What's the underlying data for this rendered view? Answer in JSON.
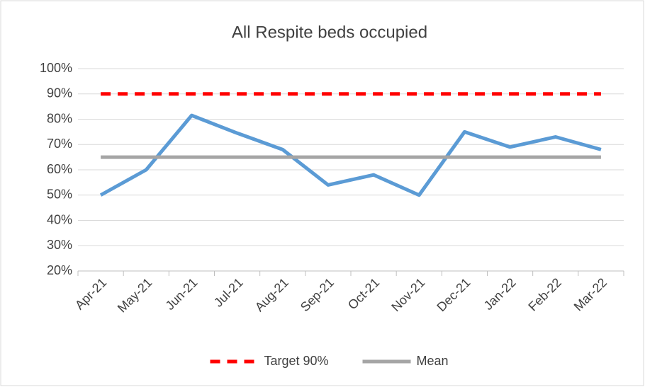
{
  "chart_data": {
    "type": "line",
    "title": "All Respite beds occupied",
    "categories": [
      "Apr-21",
      "May-21",
      "Jun-21",
      "Jul-21",
      "Aug-21",
      "Sep-21",
      "Oct-21",
      "Nov-21",
      "Dec-21",
      "Jan-22",
      "Feb-22",
      "Mar-22"
    ],
    "series": [
      {
        "color": "#5b9bd5",
        "values": [
          50,
          60,
          81.5,
          74.5,
          68,
          54,
          58,
          50,
          75,
          69,
          73,
          68
        ]
      },
      {
        "name": "Target 90%",
        "color": "#ff0000",
        "dashed": true,
        "values": [
          90,
          90,
          90,
          90,
          90,
          90,
          90,
          90,
          90,
          90,
          90,
          90
        ]
      },
      {
        "name": "Mean",
        "color": "#a5a5a5",
        "values": [
          65,
          65,
          65,
          65,
          65,
          65,
          65,
          65,
          65,
          65,
          65,
          65
        ]
      }
    ],
    "ylim": [
      20,
      100
    ],
    "yticks": [
      {
        "value": 20,
        "label": "20%"
      },
      {
        "value": 30,
        "label": "30%"
      },
      {
        "value": 40,
        "label": "40%"
      },
      {
        "value": 50,
        "label": "50%"
      },
      {
        "value": 60,
        "label": "60%"
      },
      {
        "value": 70,
        "label": "70%"
      },
      {
        "value": 80,
        "label": "80%"
      },
      {
        "value": 90,
        "label": "90%"
      },
      {
        "value": 100,
        "label": "100%"
      }
    ],
    "grid": true,
    "legend": "bottom"
  }
}
